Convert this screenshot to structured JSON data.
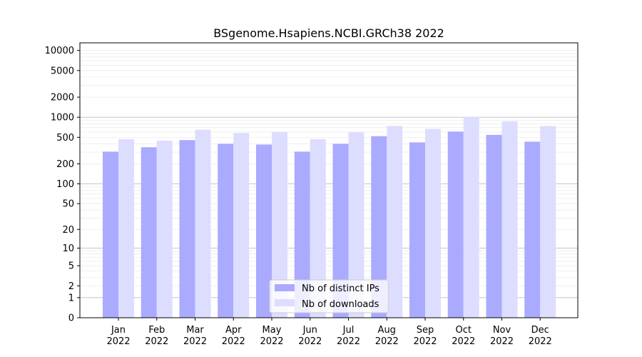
{
  "chart_data": {
    "type": "bar",
    "title": "BSgenome.Hsapiens.NCBI.GRCh38 2022",
    "xlabel": "",
    "ylabel": "",
    "yscale": "log1p",
    "ylim": [
      0,
      13000
    ],
    "y_ticks": [
      0,
      1,
      2,
      5,
      10,
      20,
      50,
      100,
      200,
      500,
      1000,
      2000,
      5000,
      10000
    ],
    "grid": "horizontal",
    "legend_position": "lower-center",
    "categories": [
      [
        "Jan",
        "2022"
      ],
      [
        "Feb",
        "2022"
      ],
      [
        "Mar",
        "2022"
      ],
      [
        "Apr",
        "2022"
      ],
      [
        "May",
        "2022"
      ],
      [
        "Jun",
        "2022"
      ],
      [
        "Jul",
        "2022"
      ],
      [
        "Aug",
        "2022"
      ],
      [
        "Sep",
        "2022"
      ],
      [
        "Oct",
        "2022"
      ],
      [
        "Nov",
        "2022"
      ],
      [
        "Dec",
        "2022"
      ]
    ],
    "series": [
      {
        "name": "Nb of distinct IPs",
        "color": "#aaaaff",
        "values": [
          305,
          355,
          455,
          400,
          390,
          305,
          400,
          520,
          420,
          610,
          545,
          430
        ]
      },
      {
        "name": "Nb of downloads",
        "color": "#ddddff",
        "values": [
          470,
          445,
          650,
          580,
          600,
          470,
          595,
          740,
          670,
          1020,
          870,
          740
        ]
      }
    ]
  }
}
